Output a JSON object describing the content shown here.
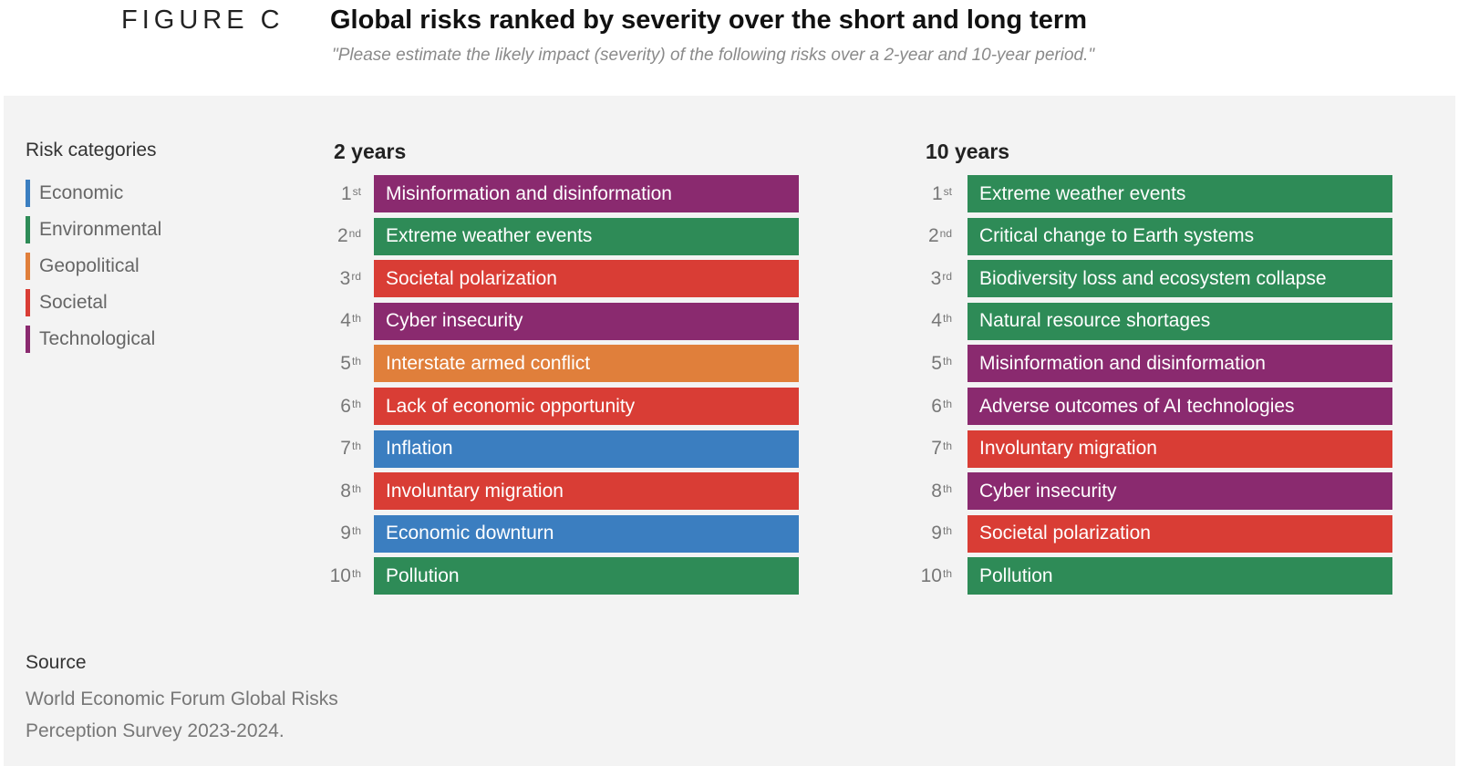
{
  "header": {
    "figure_label": "FIGURE C",
    "title": "Global risks ranked by severity over the short and long term",
    "subtitle": "\"Please estimate the likely impact (severity) of the following risks over a 2-year and 10-year period.\""
  },
  "legend": {
    "title": "Risk categories",
    "items": [
      {
        "label": "Economic",
        "color": "#3b7ec0"
      },
      {
        "label": "Environmental",
        "color": "#2e8b57"
      },
      {
        "label": "Geopolitical",
        "color": "#e07f3b"
      },
      {
        "label": "Societal",
        "color": "#d93d35"
      },
      {
        "label": "Technological",
        "color": "#8a2a6f"
      }
    ]
  },
  "source": {
    "title": "Source",
    "text": "World Economic Forum Global Risks Perception Survey 2023-2024."
  },
  "chart_data": {
    "type": "table",
    "columns": [
      {
        "title": "2 years",
        "rows": [
          {
            "rank": "1",
            "suffix": "st",
            "label": "Misinformation and disinformation",
            "category": "Technological"
          },
          {
            "rank": "2",
            "suffix": "nd",
            "label": "Extreme weather events",
            "category": "Environmental"
          },
          {
            "rank": "3",
            "suffix": "rd",
            "label": "Societal polarization",
            "category": "Societal"
          },
          {
            "rank": "4",
            "suffix": "th",
            "label": "Cyber insecurity",
            "category": "Technological"
          },
          {
            "rank": "5",
            "suffix": "th",
            "label": "Interstate armed conflict",
            "category": "Geopolitical"
          },
          {
            "rank": "6",
            "suffix": "th",
            "label": "Lack of economic opportunity",
            "category": "Societal"
          },
          {
            "rank": "7",
            "suffix": "th",
            "label": "Inflation",
            "category": "Economic"
          },
          {
            "rank": "8",
            "suffix": "th",
            "label": "Involuntary migration",
            "category": "Societal"
          },
          {
            "rank": "9",
            "suffix": "th",
            "label": "Economic downturn",
            "category": "Economic"
          },
          {
            "rank": "10",
            "suffix": "th",
            "label": "Pollution",
            "category": "Environmental"
          }
        ]
      },
      {
        "title": "10 years",
        "rows": [
          {
            "rank": "1",
            "suffix": "st",
            "label": "Extreme weather events",
            "category": "Environmental"
          },
          {
            "rank": "2",
            "suffix": "nd",
            "label": "Critical change to Earth systems",
            "category": "Environmental"
          },
          {
            "rank": "3",
            "suffix": "rd",
            "label": "Biodiversity loss and ecosystem collapse",
            "category": "Environmental"
          },
          {
            "rank": "4",
            "suffix": "th",
            "label": "Natural resource shortages",
            "category": "Environmental"
          },
          {
            "rank": "5",
            "suffix": "th",
            "label": "Misinformation and disinformation",
            "category": "Technological"
          },
          {
            "rank": "6",
            "suffix": "th",
            "label": "Adverse outcomes of AI technologies",
            "category": "Technological"
          },
          {
            "rank": "7",
            "suffix": "th",
            "label": "Involuntary migration",
            "category": "Societal"
          },
          {
            "rank": "8",
            "suffix": "th",
            "label": "Cyber insecurity",
            "category": "Technological"
          },
          {
            "rank": "9",
            "suffix": "th",
            "label": "Societal polarization",
            "category": "Societal"
          },
          {
            "rank": "10",
            "suffix": "th",
            "label": "Pollution",
            "category": "Environmental"
          }
        ]
      }
    ]
  }
}
